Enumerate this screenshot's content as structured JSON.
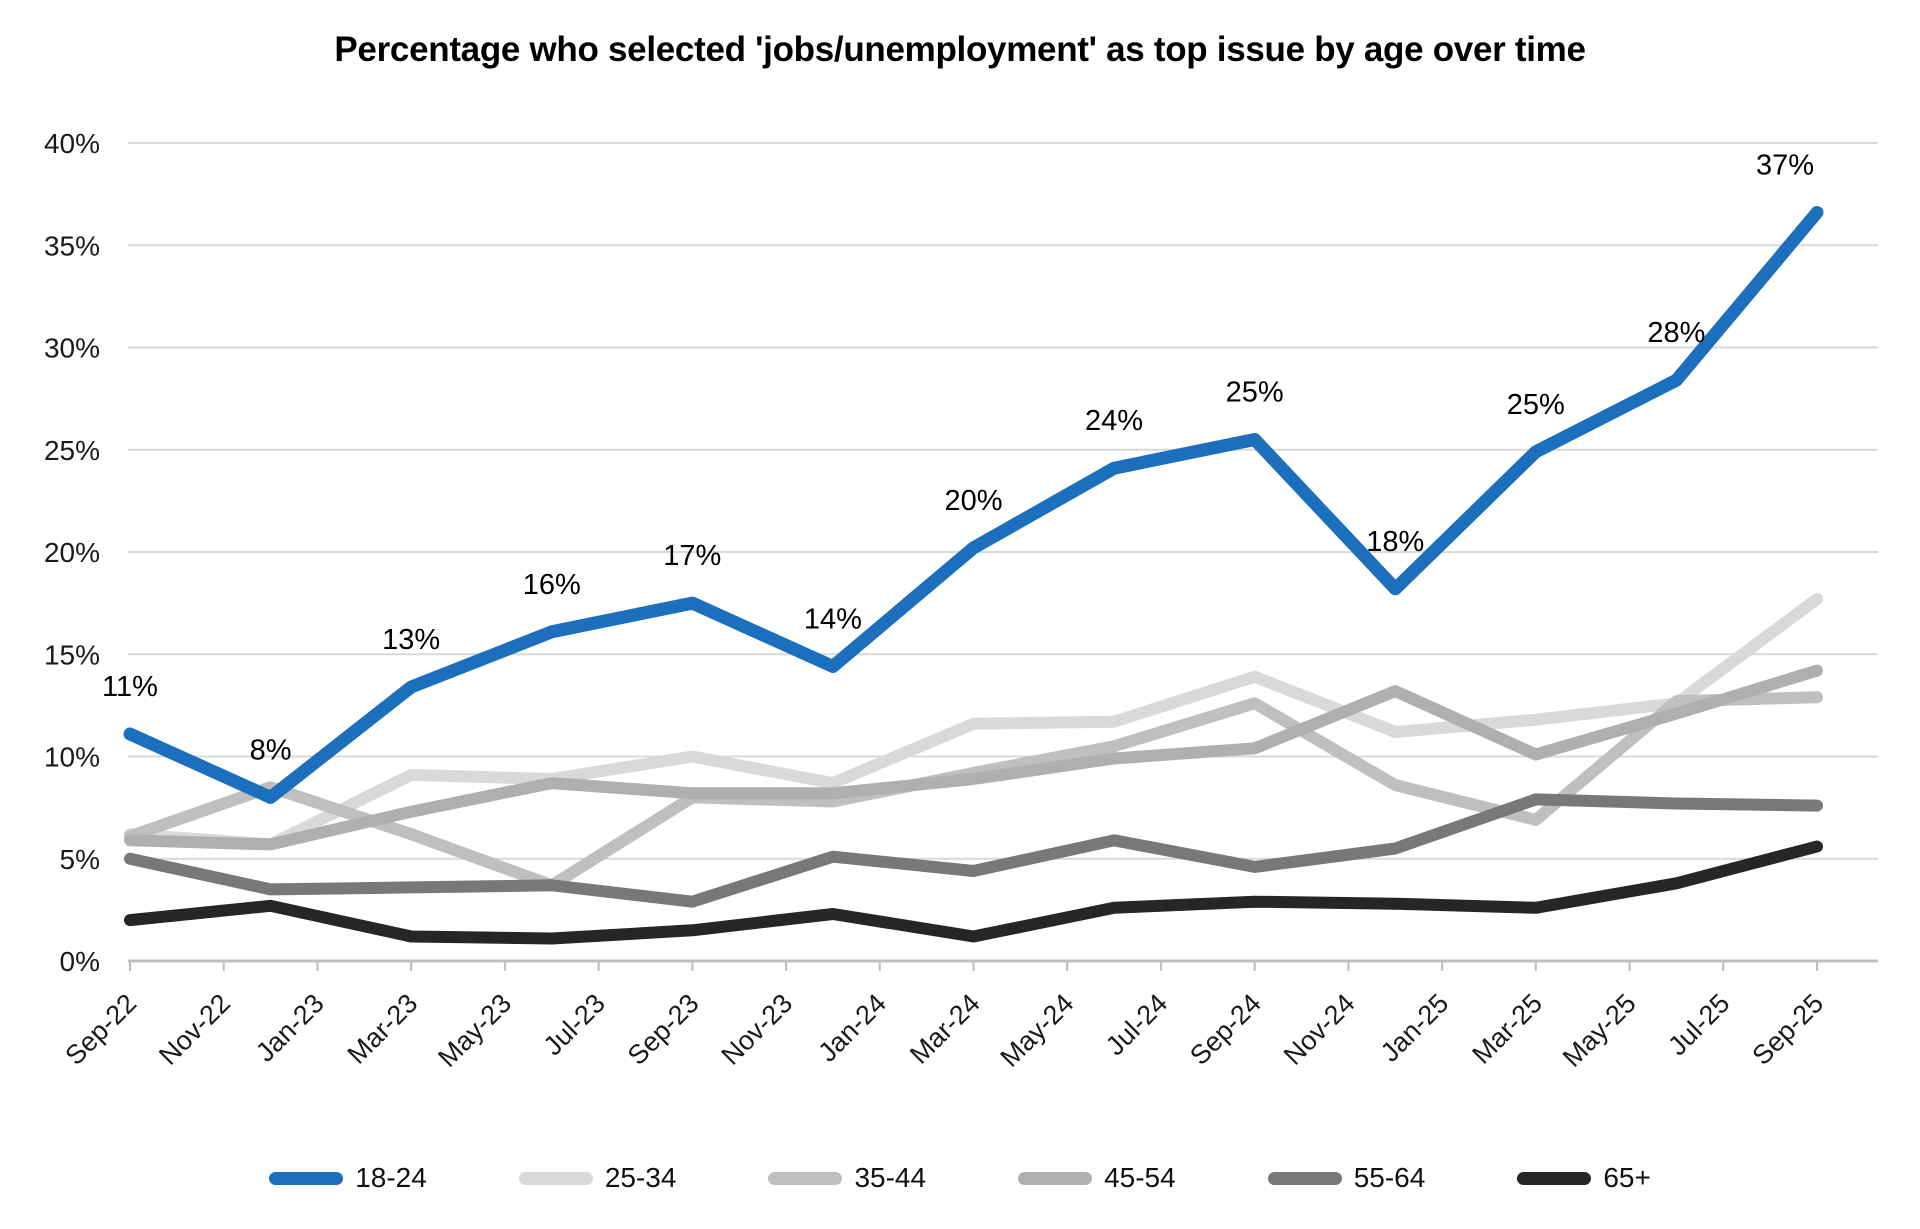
{
  "chart_data": {
    "type": "line",
    "title": "Percentage who selected 'jobs/unemployment' as top issue by age over time",
    "x_tick_labels": [
      "Sep-22",
      "Nov-22",
      "Jan-23",
      "Mar-23",
      "May-23",
      "Jul-23",
      "Sep-23",
      "Nov-23",
      "Jan-24",
      "Mar-24",
      "May-24",
      "Jul-24",
      "Sep-24",
      "Nov-24",
      "Jan-25",
      "Mar-25",
      "May-25",
      "Jul-25",
      "Sep-25"
    ],
    "data_point_dates": [
      "Sep-22",
      "Dec-22",
      "Mar-23",
      "Jun-23",
      "Sep-23",
      "Dec-23",
      "Mar-24",
      "Jun-24",
      "Sep-24",
      "Dec-24",
      "Mar-25",
      "Jun-25",
      "Sep-25"
    ],
    "data_point_month_offsets": [
      0,
      3,
      6,
      9,
      12,
      15,
      18,
      21,
      24,
      27,
      30,
      33,
      36
    ],
    "x_total_months": 36,
    "ylim": [
      0,
      40
    ],
    "y_tick_labels": [
      "0%",
      "5%",
      "10%",
      "15%",
      "20%",
      "25%",
      "30%",
      "35%",
      "40%"
    ],
    "grid": true,
    "legend_position": "bottom",
    "series": [
      {
        "name": "18-24",
        "color": "#1B6FBC",
        "values": [
          11.1,
          8.0,
          13.4,
          16.1,
          17.5,
          14.4,
          20.2,
          24.1,
          25.5,
          18.2,
          24.9,
          28.4,
          36.6
        ],
        "point_labels": [
          "11%",
          "8%",
          "13%",
          "16%",
          "17%",
          "14%",
          "20%",
          "24%",
          "25%",
          "18%",
          "25%",
          "28%",
          "37%"
        ]
      },
      {
        "name": "25-34",
        "color": "#D9D9D9",
        "values": [
          6.2,
          5.7,
          9.1,
          8.9,
          10.0,
          8.7,
          11.6,
          11.7,
          13.9,
          11.2,
          11.8,
          12.6,
          17.7
        ]
      },
      {
        "name": "35-44",
        "color": "#BFBFBF",
        "values": [
          6.1,
          8.5,
          6.2,
          3.7,
          8.0,
          7.8,
          9.2,
          10.5,
          12.6,
          8.6,
          6.9,
          12.7,
          12.9
        ]
      },
      {
        "name": "45-54",
        "color": "#AFAFAF",
        "values": [
          5.9,
          5.7,
          7.3,
          8.7,
          8.2,
          8.2,
          8.9,
          9.9,
          10.4,
          13.2,
          10.1,
          12.1,
          14.2
        ]
      },
      {
        "name": "55-64",
        "color": "#787878",
        "values": [
          5.0,
          3.5,
          3.6,
          3.7,
          2.9,
          5.1,
          4.4,
          5.9,
          4.6,
          5.5,
          7.9,
          7.7,
          7.6
        ]
      },
      {
        "name": "65+",
        "color": "#262626",
        "values": [
          2.0,
          2.7,
          1.2,
          1.1,
          1.5,
          2.3,
          1.2,
          2.6,
          2.9,
          2.8,
          2.6,
          3.8,
          5.6
        ]
      }
    ]
  }
}
